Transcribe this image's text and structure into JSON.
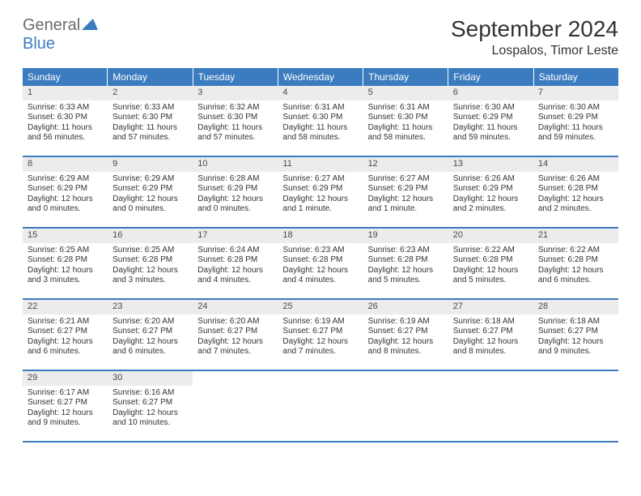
{
  "logo": {
    "part1": "General",
    "part2": "Blue"
  },
  "title": "September 2024",
  "subtitle": "Lospalos, Timor Leste",
  "colors": {
    "header_bg": "#3b7bbf",
    "header_text": "#ffffff",
    "daynum_bg": "#ececec",
    "border": "#3b7bbf",
    "page_bg": "#ffffff",
    "text": "#333333",
    "logo_gray": "#6b6b6b",
    "logo_blue": "#3b7bbf"
  },
  "daysOfWeek": [
    "Sunday",
    "Monday",
    "Tuesday",
    "Wednesday",
    "Thursday",
    "Friday",
    "Saturday"
  ],
  "weeks": [
    [
      {
        "n": "1",
        "sr": "6:33 AM",
        "ss": "6:30 PM",
        "dl": "11 hours and 56 minutes."
      },
      {
        "n": "2",
        "sr": "6:33 AM",
        "ss": "6:30 PM",
        "dl": "11 hours and 57 minutes."
      },
      {
        "n": "3",
        "sr": "6:32 AM",
        "ss": "6:30 PM",
        "dl": "11 hours and 57 minutes."
      },
      {
        "n": "4",
        "sr": "6:31 AM",
        "ss": "6:30 PM",
        "dl": "11 hours and 58 minutes."
      },
      {
        "n": "5",
        "sr": "6:31 AM",
        "ss": "6:30 PM",
        "dl": "11 hours and 58 minutes."
      },
      {
        "n": "6",
        "sr": "6:30 AM",
        "ss": "6:29 PM",
        "dl": "11 hours and 59 minutes."
      },
      {
        "n": "7",
        "sr": "6:30 AM",
        "ss": "6:29 PM",
        "dl": "11 hours and 59 minutes."
      }
    ],
    [
      {
        "n": "8",
        "sr": "6:29 AM",
        "ss": "6:29 PM",
        "dl": "12 hours and 0 minutes."
      },
      {
        "n": "9",
        "sr": "6:29 AM",
        "ss": "6:29 PM",
        "dl": "12 hours and 0 minutes."
      },
      {
        "n": "10",
        "sr": "6:28 AM",
        "ss": "6:29 PM",
        "dl": "12 hours and 0 minutes."
      },
      {
        "n": "11",
        "sr": "6:27 AM",
        "ss": "6:29 PM",
        "dl": "12 hours and 1 minute."
      },
      {
        "n": "12",
        "sr": "6:27 AM",
        "ss": "6:29 PM",
        "dl": "12 hours and 1 minute."
      },
      {
        "n": "13",
        "sr": "6:26 AM",
        "ss": "6:29 PM",
        "dl": "12 hours and 2 minutes."
      },
      {
        "n": "14",
        "sr": "6:26 AM",
        "ss": "6:28 PM",
        "dl": "12 hours and 2 minutes."
      }
    ],
    [
      {
        "n": "15",
        "sr": "6:25 AM",
        "ss": "6:28 PM",
        "dl": "12 hours and 3 minutes."
      },
      {
        "n": "16",
        "sr": "6:25 AM",
        "ss": "6:28 PM",
        "dl": "12 hours and 3 minutes."
      },
      {
        "n": "17",
        "sr": "6:24 AM",
        "ss": "6:28 PM",
        "dl": "12 hours and 4 minutes."
      },
      {
        "n": "18",
        "sr": "6:23 AM",
        "ss": "6:28 PM",
        "dl": "12 hours and 4 minutes."
      },
      {
        "n": "19",
        "sr": "6:23 AM",
        "ss": "6:28 PM",
        "dl": "12 hours and 5 minutes."
      },
      {
        "n": "20",
        "sr": "6:22 AM",
        "ss": "6:28 PM",
        "dl": "12 hours and 5 minutes."
      },
      {
        "n": "21",
        "sr": "6:22 AM",
        "ss": "6:28 PM",
        "dl": "12 hours and 6 minutes."
      }
    ],
    [
      {
        "n": "22",
        "sr": "6:21 AM",
        "ss": "6:27 PM",
        "dl": "12 hours and 6 minutes."
      },
      {
        "n": "23",
        "sr": "6:20 AM",
        "ss": "6:27 PM",
        "dl": "12 hours and 6 minutes."
      },
      {
        "n": "24",
        "sr": "6:20 AM",
        "ss": "6:27 PM",
        "dl": "12 hours and 7 minutes."
      },
      {
        "n": "25",
        "sr": "6:19 AM",
        "ss": "6:27 PM",
        "dl": "12 hours and 7 minutes."
      },
      {
        "n": "26",
        "sr": "6:19 AM",
        "ss": "6:27 PM",
        "dl": "12 hours and 8 minutes."
      },
      {
        "n": "27",
        "sr": "6:18 AM",
        "ss": "6:27 PM",
        "dl": "12 hours and 8 minutes."
      },
      {
        "n": "28",
        "sr": "6:18 AM",
        "ss": "6:27 PM",
        "dl": "12 hours and 9 minutes."
      }
    ],
    [
      {
        "n": "29",
        "sr": "6:17 AM",
        "ss": "6:27 PM",
        "dl": "12 hours and 9 minutes."
      },
      {
        "n": "30",
        "sr": "6:16 AM",
        "ss": "6:27 PM",
        "dl": "12 hours and 10 minutes."
      },
      null,
      null,
      null,
      null,
      null
    ]
  ],
  "labels": {
    "sunrise": "Sunrise: ",
    "sunset": "Sunset: ",
    "daylight": "Daylight: "
  }
}
